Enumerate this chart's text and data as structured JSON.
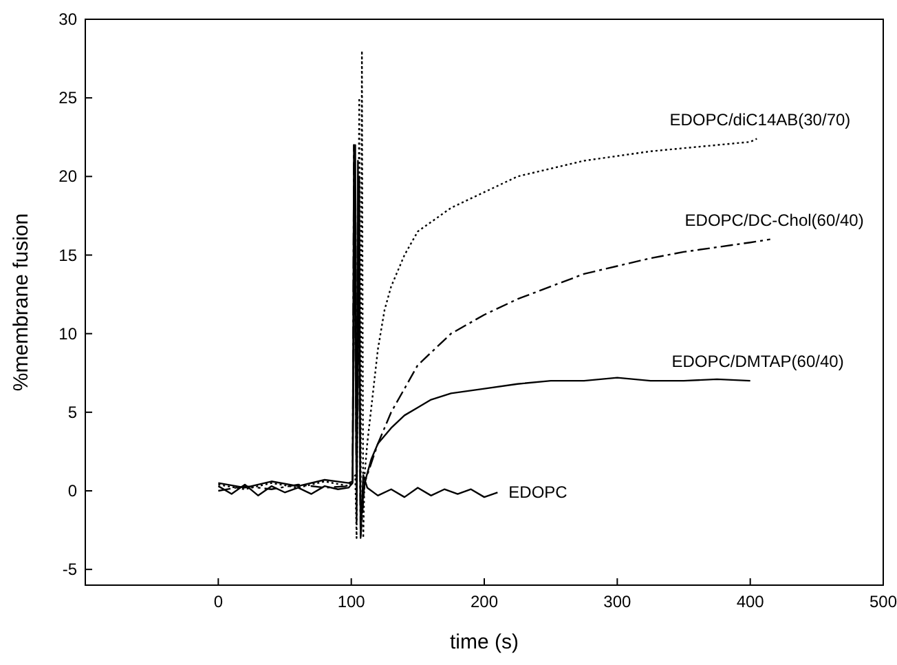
{
  "chart_data": {
    "type": "line",
    "xlabel": "time (s)",
    "ylabel": "%membrane fusion",
    "xlim": [
      -100,
      500
    ],
    "ylim": [
      -6,
      30
    ],
    "xticks": [
      0,
      100,
      200,
      300,
      400,
      500
    ],
    "yticks": [
      -5,
      0,
      5,
      10,
      15,
      20,
      25,
      30
    ],
    "grid": false,
    "series": [
      {
        "name": "EDOPC",
        "color": "#000000",
        "line_style": "solid",
        "x": [
          0,
          10,
          20,
          30,
          40,
          50,
          60,
          70,
          80,
          90,
          98,
          101,
          103,
          104,
          106,
          107,
          109,
          112,
          120,
          130,
          140,
          150,
          160,
          170,
          180,
          190,
          200,
          210
        ],
        "values": [
          0.3,
          -0.2,
          0.4,
          -0.3,
          0.3,
          -0.1,
          0.2,
          -0.2,
          0.3,
          0.1,
          0.2,
          0.5,
          22,
          -2,
          20,
          -3,
          1,
          0.2,
          -0.3,
          0.1,
          -0.4,
          0.2,
          -0.3,
          0.1,
          -0.2,
          0.1,
          -0.4,
          -0.1
        ]
      },
      {
        "name": "EDOPC/DMTAP(60/40)",
        "color": "#000000",
        "line_style": "solid",
        "x": [
          0,
          20,
          40,
          60,
          80,
          98,
          101,
          102,
          104,
          105,
          107,
          110,
          115,
          120,
          130,
          140,
          150,
          160,
          175,
          200,
          225,
          250,
          275,
          300,
          325,
          350,
          375,
          400
        ],
        "values": [
          0.5,
          0.2,
          0.6,
          0.3,
          0.7,
          0.5,
          0.6,
          22,
          0,
          21,
          -2,
          0.5,
          2,
          3,
          4,
          4.8,
          5.3,
          5.8,
          6.2,
          6.5,
          6.8,
          7,
          7,
          7.2,
          7,
          7,
          7.1,
          7
        ]
      },
      {
        "name": "EDOPC/DC-Chol(60/40)",
        "color": "#000000",
        "line_style": "dashdot",
        "x": [
          0,
          20,
          40,
          60,
          80,
          98,
          101,
          102,
          104,
          105,
          107,
          110,
          120,
          130,
          140,
          150,
          175,
          200,
          225,
          250,
          275,
          300,
          325,
          350,
          375,
          400,
          415
        ],
        "values": [
          0,
          0.3,
          0.1,
          0.4,
          0.2,
          0.3,
          0.5,
          22,
          0,
          20,
          -3,
          0.5,
          3,
          5,
          6.5,
          8,
          10,
          11.2,
          12.2,
          13,
          13.8,
          14.3,
          14.8,
          15.2,
          15.5,
          15.8,
          16
        ]
      },
      {
        "name": "EDOPC/diC14AB(30/70)",
        "color": "#000000",
        "line_style": "dotted",
        "x": [
          0,
          20,
          40,
          60,
          80,
          98,
          103,
          104,
          106,
          107,
          108,
          109,
          110,
          112,
          116,
          120,
          125,
          130,
          140,
          150,
          175,
          200,
          225,
          250,
          275,
          300,
          325,
          350,
          375,
          400,
          405
        ],
        "values": [
          0.4,
          0.1,
          0.5,
          0.2,
          0.6,
          0.3,
          1,
          -3,
          25,
          -2,
          28,
          -3,
          1,
          3,
          6,
          9,
          11.5,
          13,
          15,
          16.5,
          18,
          19,
          20,
          20.5,
          21,
          21.3,
          21.6,
          21.8,
          22,
          22.2,
          22.4
        ]
      }
    ]
  }
}
